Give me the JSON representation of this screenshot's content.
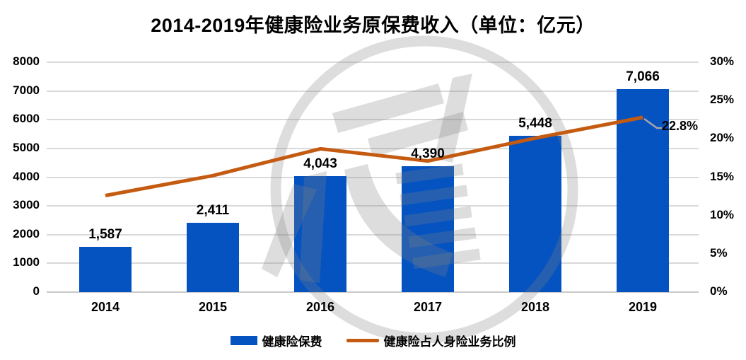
{
  "title": "2014-2019年健康险业务原保费收入（单位：亿元）",
  "chart_data": {
    "type": "bar",
    "categories": [
      "2014",
      "2015",
      "2016",
      "2017",
      "2018",
      "2019"
    ],
    "series": [
      {
        "name": "健康险保费",
        "type": "bar",
        "axis": "left",
        "values": [
          1587,
          2411,
          4043,
          4390,
          5448,
          7066
        ],
        "value_labels": [
          "1,587",
          "2,411",
          "4,043",
          "4,390",
          "5,448",
          "7,066"
        ]
      },
      {
        "name": "健康险占人身险业务比例",
        "type": "line",
        "axis": "right",
        "values": [
          12.6,
          15.2,
          18.7,
          17.1,
          20.1,
          22.8
        ]
      }
    ],
    "left_axis": {
      "min": 0,
      "max": 8000,
      "step": 1000,
      "ticks": [
        "0",
        "1000",
        "2000",
        "3000",
        "4000",
        "5000",
        "6000",
        "7000",
        "8000"
      ]
    },
    "right_axis": {
      "min": 0,
      "max": 30,
      "step": 5,
      "ticks": [
        "0%",
        "5%",
        "10%",
        "15%",
        "20%",
        "25%",
        "30%"
      ]
    },
    "grid": true,
    "legend_position": "bottom",
    "annotation": {
      "text": "22.8%",
      "category": "2019",
      "series": "健康险占人身险业务比例"
    }
  },
  "legend": {
    "bar_label": "健康险保费",
    "line_label": "健康险占人身险业务比例"
  },
  "colors": {
    "bar": "#0553c1",
    "line": "#c55a11",
    "grid": "#d9d9d9",
    "leader": "#a6a6a6",
    "text": "#000000",
    "watermark": "#808080"
  }
}
